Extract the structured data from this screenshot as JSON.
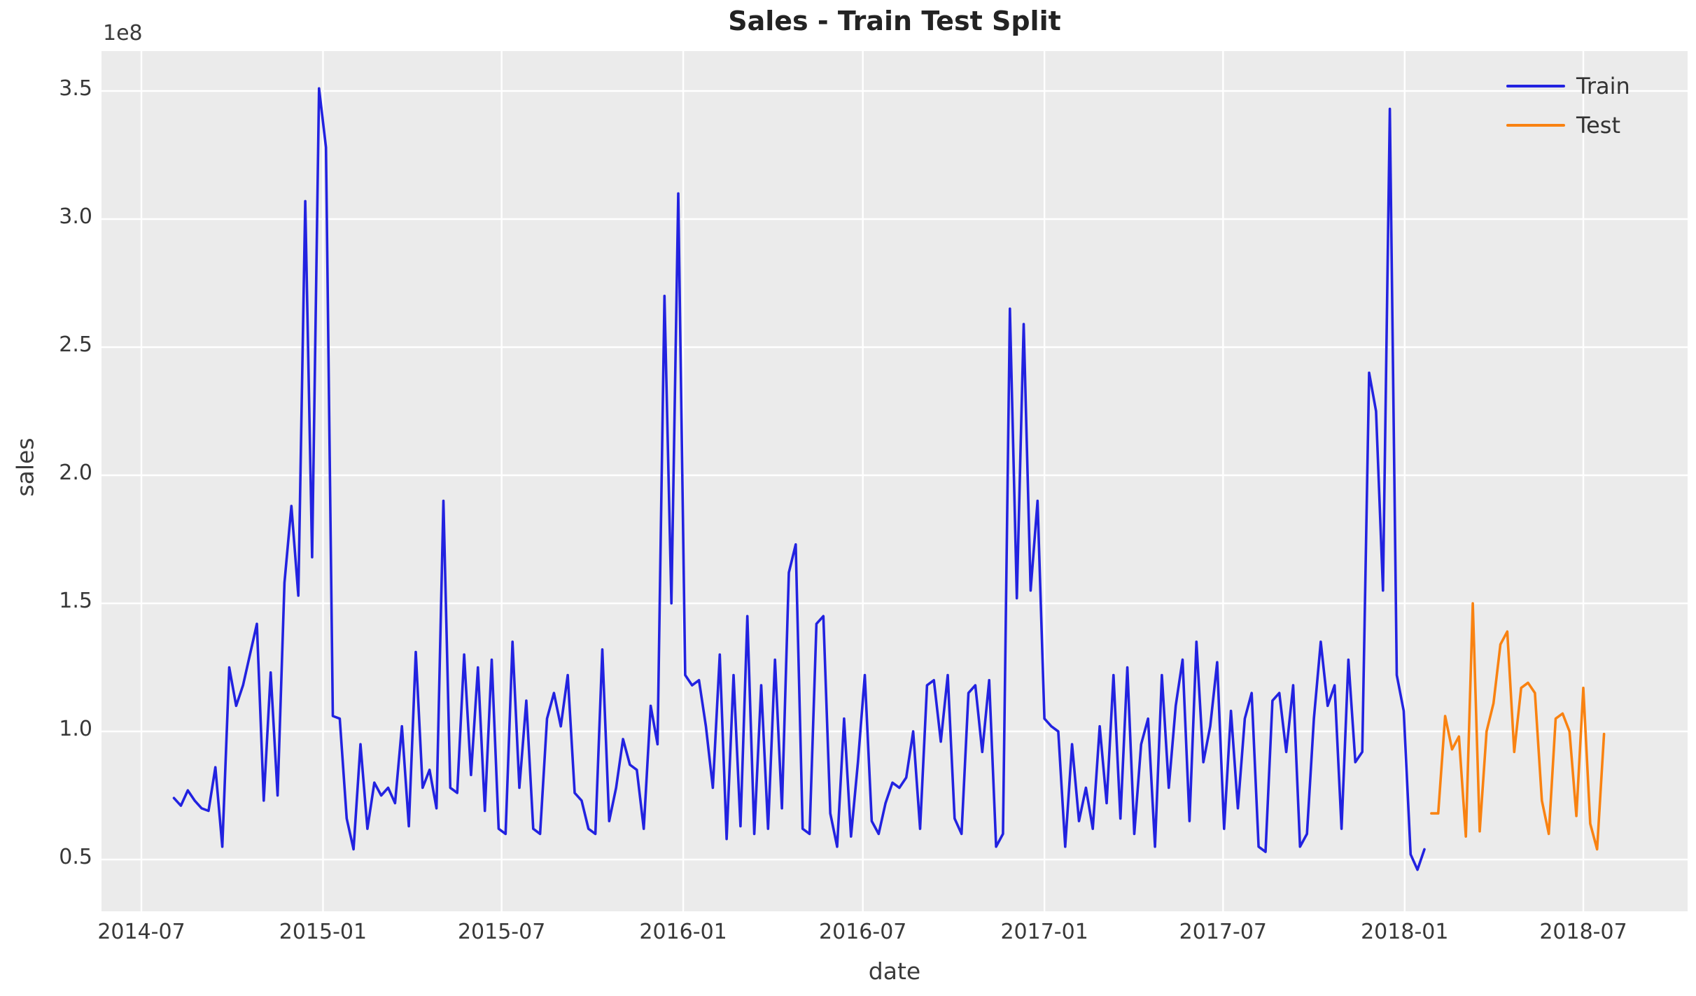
{
  "title": "Sales - Train Test Split",
  "axes": {
    "xlabel": "date",
    "ylabel": "sales",
    "offset_text": "1e8",
    "x_ticks": [
      "2014-07",
      "2015-01",
      "2015-07",
      "2016-01",
      "2016-07",
      "2017-01",
      "2017-07",
      "2018-01",
      "2018-07"
    ],
    "y_ticks": [
      "0.5",
      "1.0",
      "1.5",
      "2.0",
      "2.5",
      "3.0",
      "3.5"
    ]
  },
  "legend": {
    "position": "upper right",
    "items": [
      {
        "label": "Train",
        "color": "#2222e0"
      },
      {
        "label": "Test",
        "color": "#f98211"
      }
    ]
  },
  "colors": {
    "figure_background": "#ffffff",
    "plot_background": "#ebebeb",
    "grid": "#ffffff",
    "train_line": "#2222e0",
    "test_line": "#f98211",
    "text": "#383838",
    "title_text": "#232323"
  },
  "chart_data": {
    "type": "line",
    "title": "Sales - Train Test Split",
    "xlabel": "date",
    "ylabel": "sales",
    "y_unit": "1e8 (values below are sales in units of 100,000,000)",
    "frequency": "weekly",
    "grid": true,
    "legend_position": "upper right",
    "ylim": [
      0.31,
      3.67
    ],
    "x_range": [
      "2014-05-22",
      "2018-10-15"
    ],
    "x_tick_labels": [
      "2014-07",
      "2015-01",
      "2015-07",
      "2016-01",
      "2016-07",
      "2017-01",
      "2017-07",
      "2018-01",
      "2018-07"
    ],
    "y_tick_values": [
      0.5,
      1.0,
      1.5,
      2.0,
      2.5,
      3.0,
      3.5
    ],
    "series": [
      {
        "name": "Train",
        "color": "#2222e0",
        "start_date": "2014-08-03",
        "values": [
          0.74,
          0.71,
          0.77,
          0.73,
          0.7,
          0.69,
          0.86,
          0.55,
          1.25,
          1.1,
          1.18,
          1.3,
          1.42,
          0.73,
          1.23,
          0.75,
          1.58,
          1.88,
          1.53,
          3.07,
          1.68,
          3.51,
          3.28,
          1.06,
          1.05,
          0.66,
          0.54,
          0.95,
          0.62,
          0.8,
          0.75,
          0.78,
          0.72,
          1.02,
          0.63,
          1.31,
          0.78,
          0.85,
          0.7,
          1.9,
          0.78,
          0.76,
          1.3,
          0.83,
          1.25,
          0.69,
          1.28,
          0.62,
          0.6,
          1.35,
          0.78,
          1.12,
          0.62,
          0.6,
          1.05,
          1.15,
          1.02,
          1.22,
          0.76,
          0.73,
          0.62,
          0.6,
          1.32,
          0.65,
          0.78,
          0.97,
          0.87,
          0.85,
          0.62,
          1.1,
          0.95,
          2.7,
          1.5,
          3.1,
          1.22,
          1.18,
          1.2,
          1.02,
          0.78,
          1.3,
          0.58,
          1.22,
          0.63,
          1.45,
          0.6,
          1.18,
          0.62,
          1.28,
          0.7,
          1.62,
          1.73,
          0.62,
          0.6,
          1.42,
          1.45,
          0.68,
          0.55,
          1.05,
          0.59,
          0.88,
          1.22,
          0.65,
          0.6,
          0.72,
          0.8,
          0.78,
          0.82,
          1.0,
          0.62,
          1.18,
          1.2,
          0.96,
          1.22,
          0.66,
          0.6,
          1.15,
          1.18,
          0.92,
          1.2,
          0.55,
          0.6,
          2.65,
          1.52,
          2.59,
          1.55,
          1.9,
          1.05,
          1.02,
          1.0,
          0.55,
          0.95,
          0.65,
          0.78,
          0.62,
          1.02,
          0.72,
          1.22,
          0.66,
          1.25,
          0.6,
          0.95,
          1.05,
          0.55,
          1.22,
          0.78,
          1.1,
          1.28,
          0.65,
          1.35,
          0.88,
          1.02,
          1.27,
          0.62,
          1.08,
          0.7,
          1.05,
          1.15,
          0.55,
          0.53,
          1.12,
          1.15,
          0.92,
          1.18,
          0.55,
          0.6,
          1.05,
          1.35,
          1.1,
          1.18,
          0.62,
          1.28,
          0.88,
          0.92,
          2.4,
          2.25,
          1.55,
          3.43,
          1.22,
          1.08,
          0.52,
          0.46,
          0.54
        ]
      },
      {
        "name": "Test",
        "color": "#f98211",
        "start_date": "2018-01-28",
        "values": [
          0.68,
          0.68,
          1.06,
          0.93,
          0.98,
          0.59,
          1.5,
          0.61,
          1.0,
          1.11,
          1.34,
          1.39,
          0.92,
          1.17,
          1.19,
          1.15,
          0.73,
          0.6,
          1.05,
          1.07,
          1.0,
          0.67,
          1.17,
          0.64,
          0.54,
          0.99
        ]
      }
    ]
  }
}
